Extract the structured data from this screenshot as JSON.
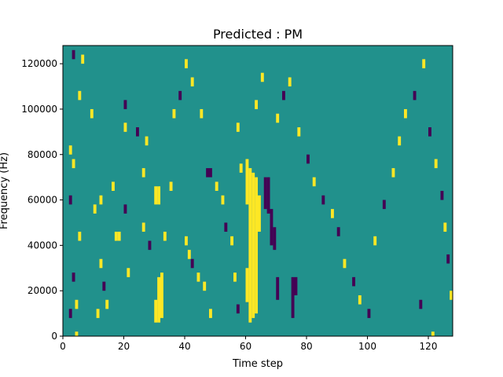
{
  "chart_data": {
    "type": "heatmap",
    "title": "Predicted : PM",
    "xlabel": "Time step",
    "ylabel": "Frequency (Hz)",
    "xlim": [
      0,
      128
    ],
    "ylim": [
      0,
      128000
    ],
    "x_ticks": [
      0,
      20,
      40,
      60,
      80,
      100,
      120
    ],
    "y_ticks": [
      0,
      20000,
      40000,
      60000,
      80000,
      100000,
      120000
    ],
    "x_tick_labels": [
      "0",
      "20",
      "40",
      "60",
      "80",
      "100",
      "120"
    ],
    "y_tick_labels": [
      "0",
      "20000",
      "40000",
      "60000",
      "80000",
      "100000",
      "120000"
    ],
    "grid": false,
    "legend": "none",
    "classes": [
      {
        "value": -1,
        "color": "#440154"
      },
      {
        "value": 0,
        "color": "#21918c"
      },
      {
        "value": 1,
        "color": "#fde725"
      }
    ],
    "background_value": 0,
    "cells": [
      {
        "x": 60,
        "y0": 58000,
        "y1": 78000,
        "value": 1
      },
      {
        "x": 61,
        "y0": 6000,
        "y1": 74000,
        "value": 1
      },
      {
        "x": 62,
        "y0": 8000,
        "y1": 72000,
        "value": 1
      },
      {
        "x": 63,
        "y0": 10000,
        "y1": 70000,
        "value": 1
      },
      {
        "x": 64,
        "y0": 46000,
        "y1": 62000,
        "value": 1
      },
      {
        "x": 60,
        "y0": 15000,
        "y1": 30000,
        "value": 1
      },
      {
        "x": 30,
        "y0": 6000,
        "y1": 16000,
        "value": 1
      },
      {
        "x": 31,
        "y0": 6000,
        "y1": 26000,
        "value": 1
      },
      {
        "x": 32,
        "y0": 8000,
        "y1": 28000,
        "value": 1
      },
      {
        "x": 30,
        "y0": 58000,
        "y1": 66000,
        "value": 1
      },
      {
        "x": 31,
        "y0": 58000,
        "y1": 66000,
        "value": 1
      },
      {
        "x": 66,
        "y0": 56000,
        "y1": 70000,
        "value": -1
      },
      {
        "x": 67,
        "y0": 54000,
        "y1": 70000,
        "value": -1
      },
      {
        "x": 68,
        "y0": 40000,
        "y1": 56000,
        "value": -1
      },
      {
        "x": 69,
        "y0": 38000,
        "y1": 48000,
        "value": -1
      },
      {
        "x": 70,
        "y0": 16000,
        "y1": 26000,
        "value": -1
      },
      {
        "x": 75,
        "y0": 8000,
        "y1": 26000,
        "value": -1
      },
      {
        "x": 76,
        "y0": 18000,
        "y1": 26000,
        "value": -1
      },
      {
        "x": 48,
        "y0": 70000,
        "y1": 74000,
        "value": -1
      },
      {
        "x": 47,
        "y0": 70000,
        "y1": 74000,
        "value": -1
      },
      {
        "x": 117,
        "y0": 12000,
        "y1": 16000,
        "value": -1
      },
      {
        "x": 4,
        "y0": 0,
        "y1": 2000,
        "value": 1
      },
      {
        "x": 121,
        "y0": 0,
        "y1": 2000,
        "value": 1
      },
      {
        "x": 2,
        "y0": 8000,
        "y1": 12000,
        "value": -1
      },
      {
        "x": 4,
        "y0": 12000,
        "y1": 16000,
        "value": 1
      },
      {
        "x": 3,
        "y0": 24000,
        "y1": 28000,
        "value": -1
      },
      {
        "x": 5,
        "y0": 42000,
        "y1": 46000,
        "value": 1
      },
      {
        "x": 2,
        "y0": 58000,
        "y1": 62000,
        "value": -1
      },
      {
        "x": 2,
        "y0": 80000,
        "y1": 84000,
        "value": 1
      },
      {
        "x": 3,
        "y0": 74000,
        "y1": 78000,
        "value": 1
      },
      {
        "x": 5,
        "y0": 104000,
        "y1": 108000,
        "value": 1
      },
      {
        "x": 3,
        "y0": 122000,
        "y1": 126000,
        "value": -1
      },
      {
        "x": 6,
        "y0": 120000,
        "y1": 124000,
        "value": 1
      },
      {
        "x": 9,
        "y0": 96000,
        "y1": 100000,
        "value": 1
      },
      {
        "x": 10,
        "y0": 54000,
        "y1": 58000,
        "value": 1
      },
      {
        "x": 12,
        "y0": 58000,
        "y1": 62000,
        "value": 1
      },
      {
        "x": 13,
        "y0": 20000,
        "y1": 24000,
        "value": -1
      },
      {
        "x": 14,
        "y0": 12000,
        "y1": 16000,
        "value": 1
      },
      {
        "x": 12,
        "y0": 30000,
        "y1": 34000,
        "value": 1
      },
      {
        "x": 11,
        "y0": 8000,
        "y1": 12000,
        "value": 1
      },
      {
        "x": 16,
        "y0": 64000,
        "y1": 68000,
        "value": 1
      },
      {
        "x": 17,
        "y0": 42000,
        "y1": 46000,
        "value": 1
      },
      {
        "x": 18,
        "y0": 42000,
        "y1": 46000,
        "value": 1
      },
      {
        "x": 20,
        "y0": 54000,
        "y1": 58000,
        "value": -1
      },
      {
        "x": 21,
        "y0": 26000,
        "y1": 30000,
        "value": 1
      },
      {
        "x": 20,
        "y0": 90000,
        "y1": 94000,
        "value": 1
      },
      {
        "x": 20,
        "y0": 100000,
        "y1": 104000,
        "value": -1
      },
      {
        "x": 24,
        "y0": 88000,
        "y1": 92000,
        "value": -1
      },
      {
        "x": 27,
        "y0": 84000,
        "y1": 88000,
        "value": 1
      },
      {
        "x": 26,
        "y0": 70000,
        "y1": 74000,
        "value": 1
      },
      {
        "x": 26,
        "y0": 46000,
        "y1": 50000,
        "value": 1
      },
      {
        "x": 28,
        "y0": 38000,
        "y1": 42000,
        "value": -1
      },
      {
        "x": 33,
        "y0": 42000,
        "y1": 46000,
        "value": 1
      },
      {
        "x": 35,
        "y0": 64000,
        "y1": 68000,
        "value": 1
      },
      {
        "x": 36,
        "y0": 96000,
        "y1": 100000,
        "value": 1
      },
      {
        "x": 38,
        "y0": 104000,
        "y1": 108000,
        "value": -1
      },
      {
        "x": 40,
        "y0": 118000,
        "y1": 122000,
        "value": 1
      },
      {
        "x": 42,
        "y0": 110000,
        "y1": 114000,
        "value": 1
      },
      {
        "x": 45,
        "y0": 96000,
        "y1": 100000,
        "value": 1
      },
      {
        "x": 40,
        "y0": 40000,
        "y1": 44000,
        "value": 1
      },
      {
        "x": 41,
        "y0": 34000,
        "y1": 38000,
        "value": 1
      },
      {
        "x": 42,
        "y0": 30000,
        "y1": 34000,
        "value": -1
      },
      {
        "x": 44,
        "y0": 24000,
        "y1": 28000,
        "value": 1
      },
      {
        "x": 46,
        "y0": 20000,
        "y1": 24000,
        "value": 1
      },
      {
        "x": 48,
        "y0": 8000,
        "y1": 12000,
        "value": 1
      },
      {
        "x": 50,
        "y0": 64000,
        "y1": 68000,
        "value": 1
      },
      {
        "x": 52,
        "y0": 58000,
        "y1": 62000,
        "value": 1
      },
      {
        "x": 53,
        "y0": 46000,
        "y1": 50000,
        "value": -1
      },
      {
        "x": 55,
        "y0": 40000,
        "y1": 44000,
        "value": 1
      },
      {
        "x": 56,
        "y0": 24000,
        "y1": 28000,
        "value": 1
      },
      {
        "x": 57,
        "y0": 10000,
        "y1": 14000,
        "value": -1
      },
      {
        "x": 58,
        "y0": 72000,
        "y1": 76000,
        "value": 1
      },
      {
        "x": 57,
        "y0": 90000,
        "y1": 94000,
        "value": 1
      },
      {
        "x": 63,
        "y0": 100000,
        "y1": 104000,
        "value": 1
      },
      {
        "x": 65,
        "y0": 112000,
        "y1": 116000,
        "value": 1
      },
      {
        "x": 70,
        "y0": 94000,
        "y1": 98000,
        "value": 1
      },
      {
        "x": 72,
        "y0": 104000,
        "y1": 108000,
        "value": -1
      },
      {
        "x": 74,
        "y0": 110000,
        "y1": 114000,
        "value": 1
      },
      {
        "x": 77,
        "y0": 88000,
        "y1": 92000,
        "value": 1
      },
      {
        "x": 80,
        "y0": 76000,
        "y1": 80000,
        "value": -1
      },
      {
        "x": 82,
        "y0": 66000,
        "y1": 70000,
        "value": 1
      },
      {
        "x": 85,
        "y0": 58000,
        "y1": 62000,
        "value": -1
      },
      {
        "x": 88,
        "y0": 52000,
        "y1": 56000,
        "value": 1
      },
      {
        "x": 90,
        "y0": 44000,
        "y1": 48000,
        "value": -1
      },
      {
        "x": 92,
        "y0": 30000,
        "y1": 34000,
        "value": 1
      },
      {
        "x": 95,
        "y0": 22000,
        "y1": 26000,
        "value": -1
      },
      {
        "x": 97,
        "y0": 14000,
        "y1": 18000,
        "value": 1
      },
      {
        "x": 100,
        "y0": 8000,
        "y1": 12000,
        "value": -1
      },
      {
        "x": 102,
        "y0": 40000,
        "y1": 44000,
        "value": 1
      },
      {
        "x": 105,
        "y0": 56000,
        "y1": 60000,
        "value": -1
      },
      {
        "x": 108,
        "y0": 70000,
        "y1": 74000,
        "value": 1
      },
      {
        "x": 110,
        "y0": 84000,
        "y1": 88000,
        "value": 1
      },
      {
        "x": 112,
        "y0": 96000,
        "y1": 100000,
        "value": 1
      },
      {
        "x": 115,
        "y0": 104000,
        "y1": 108000,
        "value": -1
      },
      {
        "x": 118,
        "y0": 118000,
        "y1": 122000,
        "value": 1
      },
      {
        "x": 120,
        "y0": 88000,
        "y1": 92000,
        "value": -1
      },
      {
        "x": 122,
        "y0": 74000,
        "y1": 78000,
        "value": 1
      },
      {
        "x": 124,
        "y0": 60000,
        "y1": 64000,
        "value": -1
      },
      {
        "x": 125,
        "y0": 46000,
        "y1": 50000,
        "value": 1
      },
      {
        "x": 126,
        "y0": 32000,
        "y1": 36000,
        "value": -1
      },
      {
        "x": 127,
        "y0": 16000,
        "y1": 20000,
        "value": 1
      }
    ]
  }
}
